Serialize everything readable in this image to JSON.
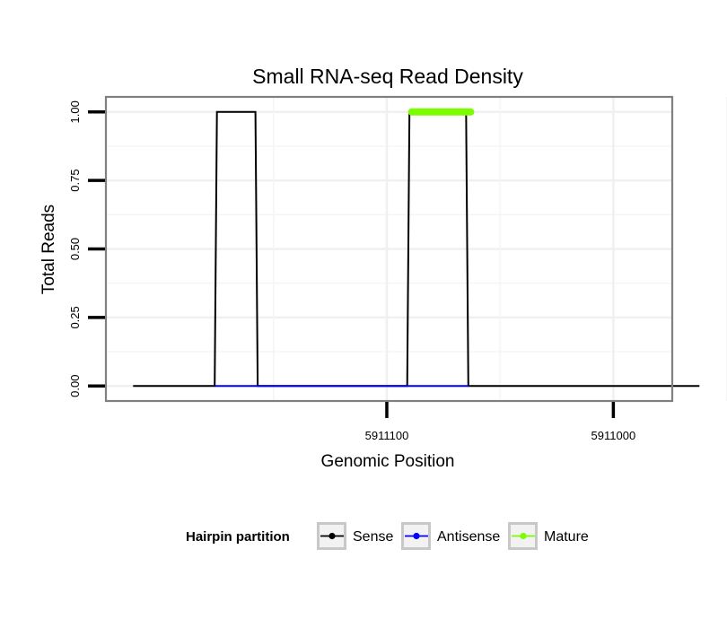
{
  "chart_data": {
    "type": "line",
    "title": "Small RNA-seq Read Density",
    "xlabel": "Genomic Position",
    "ylabel": "Total Reads",
    "x_reversed": true,
    "xlim": [
      5911224,
      5910974
    ],
    "ylim": [
      -0.055,
      1.055
    ],
    "x_ticks": [
      5911100,
      5911000
    ],
    "x_tick_labels": [
      "5911100",
      "5911000"
    ],
    "y_ticks": [
      0,
      0.25,
      0.5,
      0.75,
      1
    ],
    "y_tick_labels": [
      "0.00",
      "0.25",
      "0.50",
      "0.75",
      "1.00"
    ],
    "grid": true,
    "series": [
      {
        "name": "Sense",
        "color": "#000000",
        "x": [
          5911212,
          5911176,
          5911175,
          5911158,
          5911157,
          5911091,
          5911090,
          5911065,
          5911064,
          5910962
        ],
        "y": [
          0,
          0,
          1,
          1,
          0,
          0,
          1,
          1,
          0,
          0
        ]
      },
      {
        "name": "Antisense",
        "color": "#0000ff",
        "x": [
          5911176,
          5911157,
          5911091,
          5911064
        ],
        "y": [
          0,
          0,
          0,
          0
        ]
      },
      {
        "name": "Mature",
        "color": "#7cfc00",
        "x": [
          5911089,
          5911063
        ],
        "y": [
          1,
          1
        ]
      }
    ],
    "legend": {
      "title": "Hairpin partition",
      "position": "bottom",
      "entries": [
        "Sense",
        "Antisense",
        "Mature"
      ]
    }
  }
}
